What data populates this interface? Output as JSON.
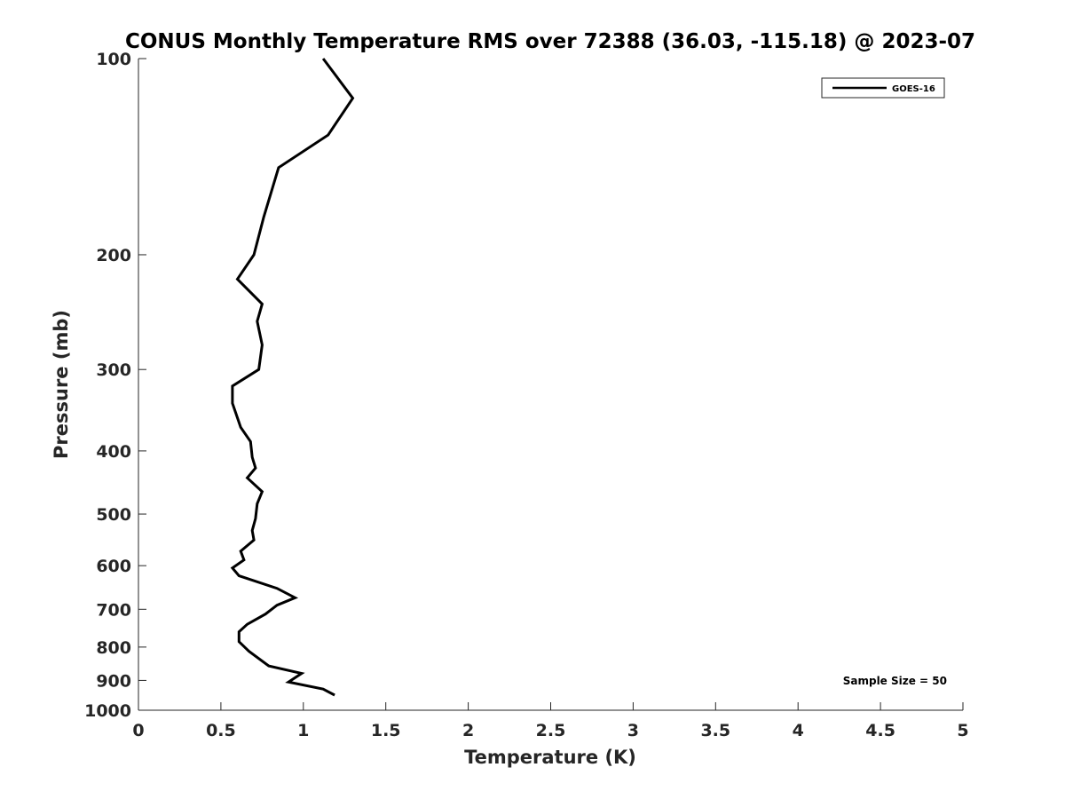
{
  "chart_data": {
    "type": "line",
    "title": "CONUS Monthly Temperature RMS over 72388 (36.03, -115.18) @ 2023-07",
    "xlabel": "Temperature (K)",
    "ylabel": "Pressure (mb)",
    "xlim": [
      0,
      5
    ],
    "ylim": [
      100,
      1000
    ],
    "y_scale": "log",
    "y_reversed": true,
    "x_ticks": [
      "0",
      "0.5",
      "1",
      "1.5",
      "2",
      "2.5",
      "3",
      "3.5",
      "4",
      "4.5",
      "5"
    ],
    "y_ticks": [
      "100",
      "200",
      "300",
      "400",
      "500",
      "600",
      "700",
      "800",
      "900",
      "1000"
    ],
    "grid": false,
    "legend_position": "top-right",
    "annotation": "Sample Size = 50",
    "series": [
      {
        "name": "GOES-16",
        "color": "#000000",
        "points": [
          [
            1.12,
            100
          ],
          [
            1.3,
            115
          ],
          [
            1.15,
            131
          ],
          [
            0.85,
            147
          ],
          [
            0.76,
            175
          ],
          [
            0.7,
            200
          ],
          [
            0.6,
            218
          ],
          [
            0.75,
            238
          ],
          [
            0.72,
            253
          ],
          [
            0.75,
            275
          ],
          [
            0.73,
            300
          ],
          [
            0.57,
            318
          ],
          [
            0.57,
            338
          ],
          [
            0.62,
            368
          ],
          [
            0.68,
            387
          ],
          [
            0.69,
            409
          ],
          [
            0.71,
            425
          ],
          [
            0.66,
            440
          ],
          [
            0.75,
            462
          ],
          [
            0.72,
            482
          ],
          [
            0.71,
            508
          ],
          [
            0.69,
            530
          ],
          [
            0.7,
            548
          ],
          [
            0.62,
            570
          ],
          [
            0.64,
            588
          ],
          [
            0.57,
            605
          ],
          [
            0.61,
            622
          ],
          [
            0.84,
            650
          ],
          [
            0.95,
            672
          ],
          [
            0.84,
            690
          ],
          [
            0.77,
            712
          ],
          [
            0.66,
            738
          ],
          [
            0.61,
            758
          ],
          [
            0.61,
            785
          ],
          [
            0.67,
            812
          ],
          [
            0.79,
            855
          ],
          [
            0.99,
            878
          ],
          [
            0.91,
            905
          ],
          [
            1.12,
            928
          ],
          [
            1.19,
            948
          ]
        ]
      }
    ]
  }
}
